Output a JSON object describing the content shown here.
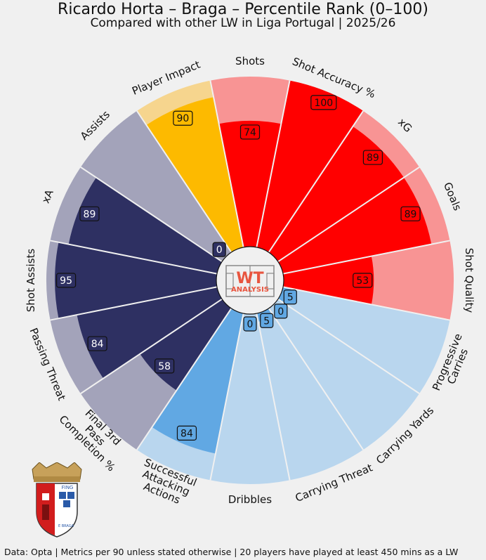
{
  "title": "Ricardo Horta – Braga – Percentile Rank (0–100)",
  "subtitle": "Compared with other LW in Liga Portugal | 2025/26",
  "footer": "Data: Opta | Metrics per 90 unless stated otherwise | 20 players have played at least 450 mins as a LW",
  "center_logo": {
    "line1": "WT",
    "line2": "ANALYSIS"
  },
  "crest": {
    "text": "FING",
    "subtext": "E BRAGA"
  },
  "colors": {
    "background": "#f0f0f0",
    "red": "#ff0000",
    "red_light": "#f89494",
    "gold": "#fdba00",
    "gold_light": "#f6d58e",
    "navy": "#2e3062",
    "navy_light": "#a3a3ba",
    "blue": "#61a8e3",
    "blue_light": "#b9d6ee",
    "purple_light": "#a3a3ba"
  },
  "chart_data": {
    "type": "radar",
    "range": [
      0,
      100
    ],
    "categories": [
      "Shots",
      "Shot Accuracy %",
      "xG",
      "Goals",
      "Shot Quality",
      "Progressive Carries",
      "Carrying Yards",
      "Carrying Threat",
      "Dribbles",
      "Successful Attacking Actions",
      "Final 3rd Pass Completion %",
      "Passing Threat",
      "Shot Assists",
      "xA",
      "Assists",
      "Player Impact"
    ],
    "values": [
      74,
      100,
      89,
      89,
      53,
      5,
      0,
      5,
      0,
      84,
      58,
      84,
      95,
      89,
      0,
      90
    ],
    "value_labels": [
      "74",
      "100",
      "89",
      "89",
      "53",
      "5",
      "0",
      "5",
      "0",
      "84",
      "58",
      "84",
      "95",
      "89",
      "0",
      "90"
    ],
    "groups": [
      "shooting",
      "shooting",
      "shooting",
      "shooting",
      "shooting",
      "carrying",
      "carrying",
      "carrying",
      "carrying",
      "carrying",
      "passing",
      "passing",
      "passing",
      "passing",
      "passing",
      "impact"
    ]
  }
}
